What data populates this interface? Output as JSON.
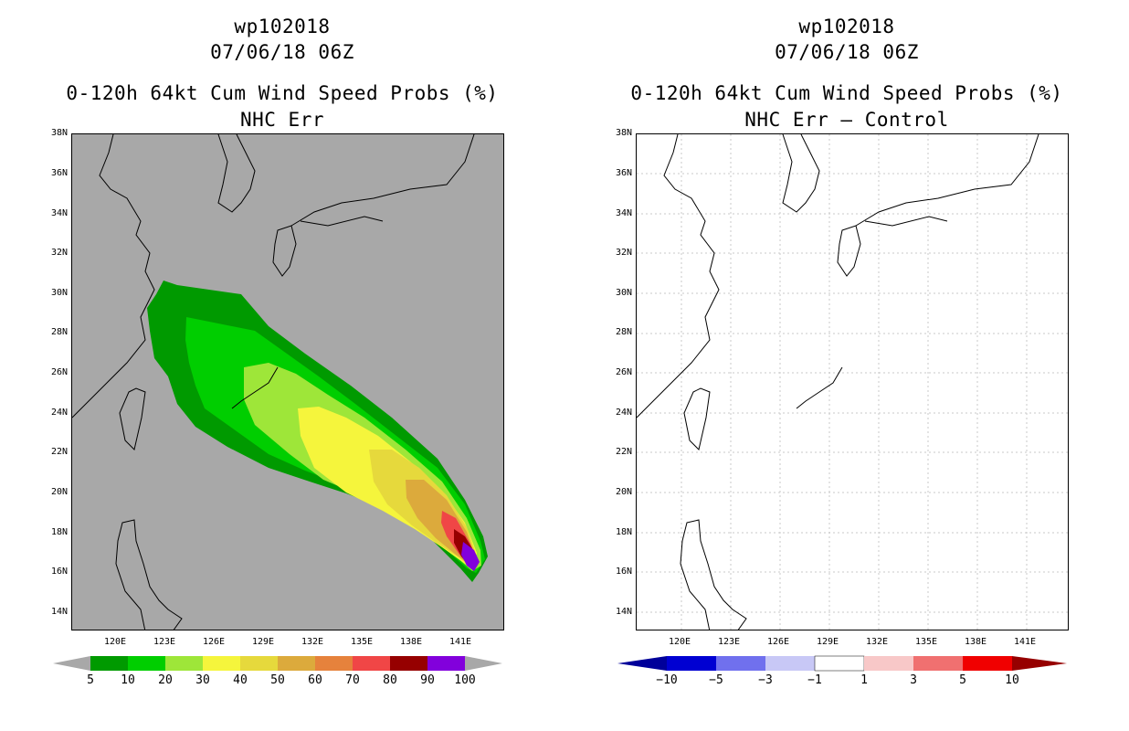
{
  "left_panel": {
    "title_id": "wp102018",
    "title_date": "07/06/18 06Z",
    "title_product": "0-120h 64kt Cum Wind Speed Probs (%)",
    "title_mode": "NHC Err",
    "background": "#a8a8a8",
    "colorbar_labels": [
      "5",
      "10",
      "20",
      "30",
      "40",
      "50",
      "60",
      "70",
      "80",
      "90",
      "100"
    ],
    "colorbar_colors": [
      "#009a00",
      "#00ce00",
      "#9ee639",
      "#f5f53c",
      "#e6d93c",
      "#dcaa3c",
      "#e6823c",
      "#f04646",
      "#960000",
      "#8200dc"
    ],
    "colorbar_end_color": "#a8a8a8"
  },
  "right_panel": {
    "title_id": "wp102018",
    "title_date": "07/06/18 06Z",
    "title_product": "0-120h 64kt Cum Wind Speed Probs (%)",
    "title_mode": "NHC Err – Control",
    "background": "#ffffff",
    "colorbar_labels": [
      "−10",
      "−5",
      "−3",
      "−1",
      "1",
      "3",
      "5",
      "10"
    ],
    "colorbar_colors": [
      "#0000d2",
      "#7070ee",
      "#c8c8f6",
      "#ffffff",
      "#f8c8c8",
      "#f07070",
      "#f00000"
    ],
    "colorbar_low_color": "#00009a",
    "colorbar_high_color": "#960000"
  },
  "axes": {
    "lat_labels": [
      "38N",
      "36N",
      "34N",
      "32N",
      "30N",
      "28N",
      "26N",
      "24N",
      "22N",
      "20N",
      "18N",
      "16N",
      "14N"
    ],
    "lat_values": [
      38,
      36,
      34,
      32,
      30,
      28,
      26,
      24,
      22,
      20,
      18,
      16,
      14
    ],
    "lon_labels": [
      "120E",
      "123E",
      "126E",
      "129E",
      "132E",
      "135E",
      "138E",
      "141E"
    ],
    "lon_values": [
      120,
      123,
      126,
      129,
      132,
      135,
      138,
      141
    ],
    "lat_range": [
      13,
      38
    ],
    "lon_range": [
      116.8,
      143
    ]
  },
  "probability_field": {
    "description_levels": [
      5,
      20,
      30,
      40,
      60,
      80,
      90
    ],
    "track_point_max": {
      "lon": 141.3,
      "lat": 16.8
    }
  }
}
